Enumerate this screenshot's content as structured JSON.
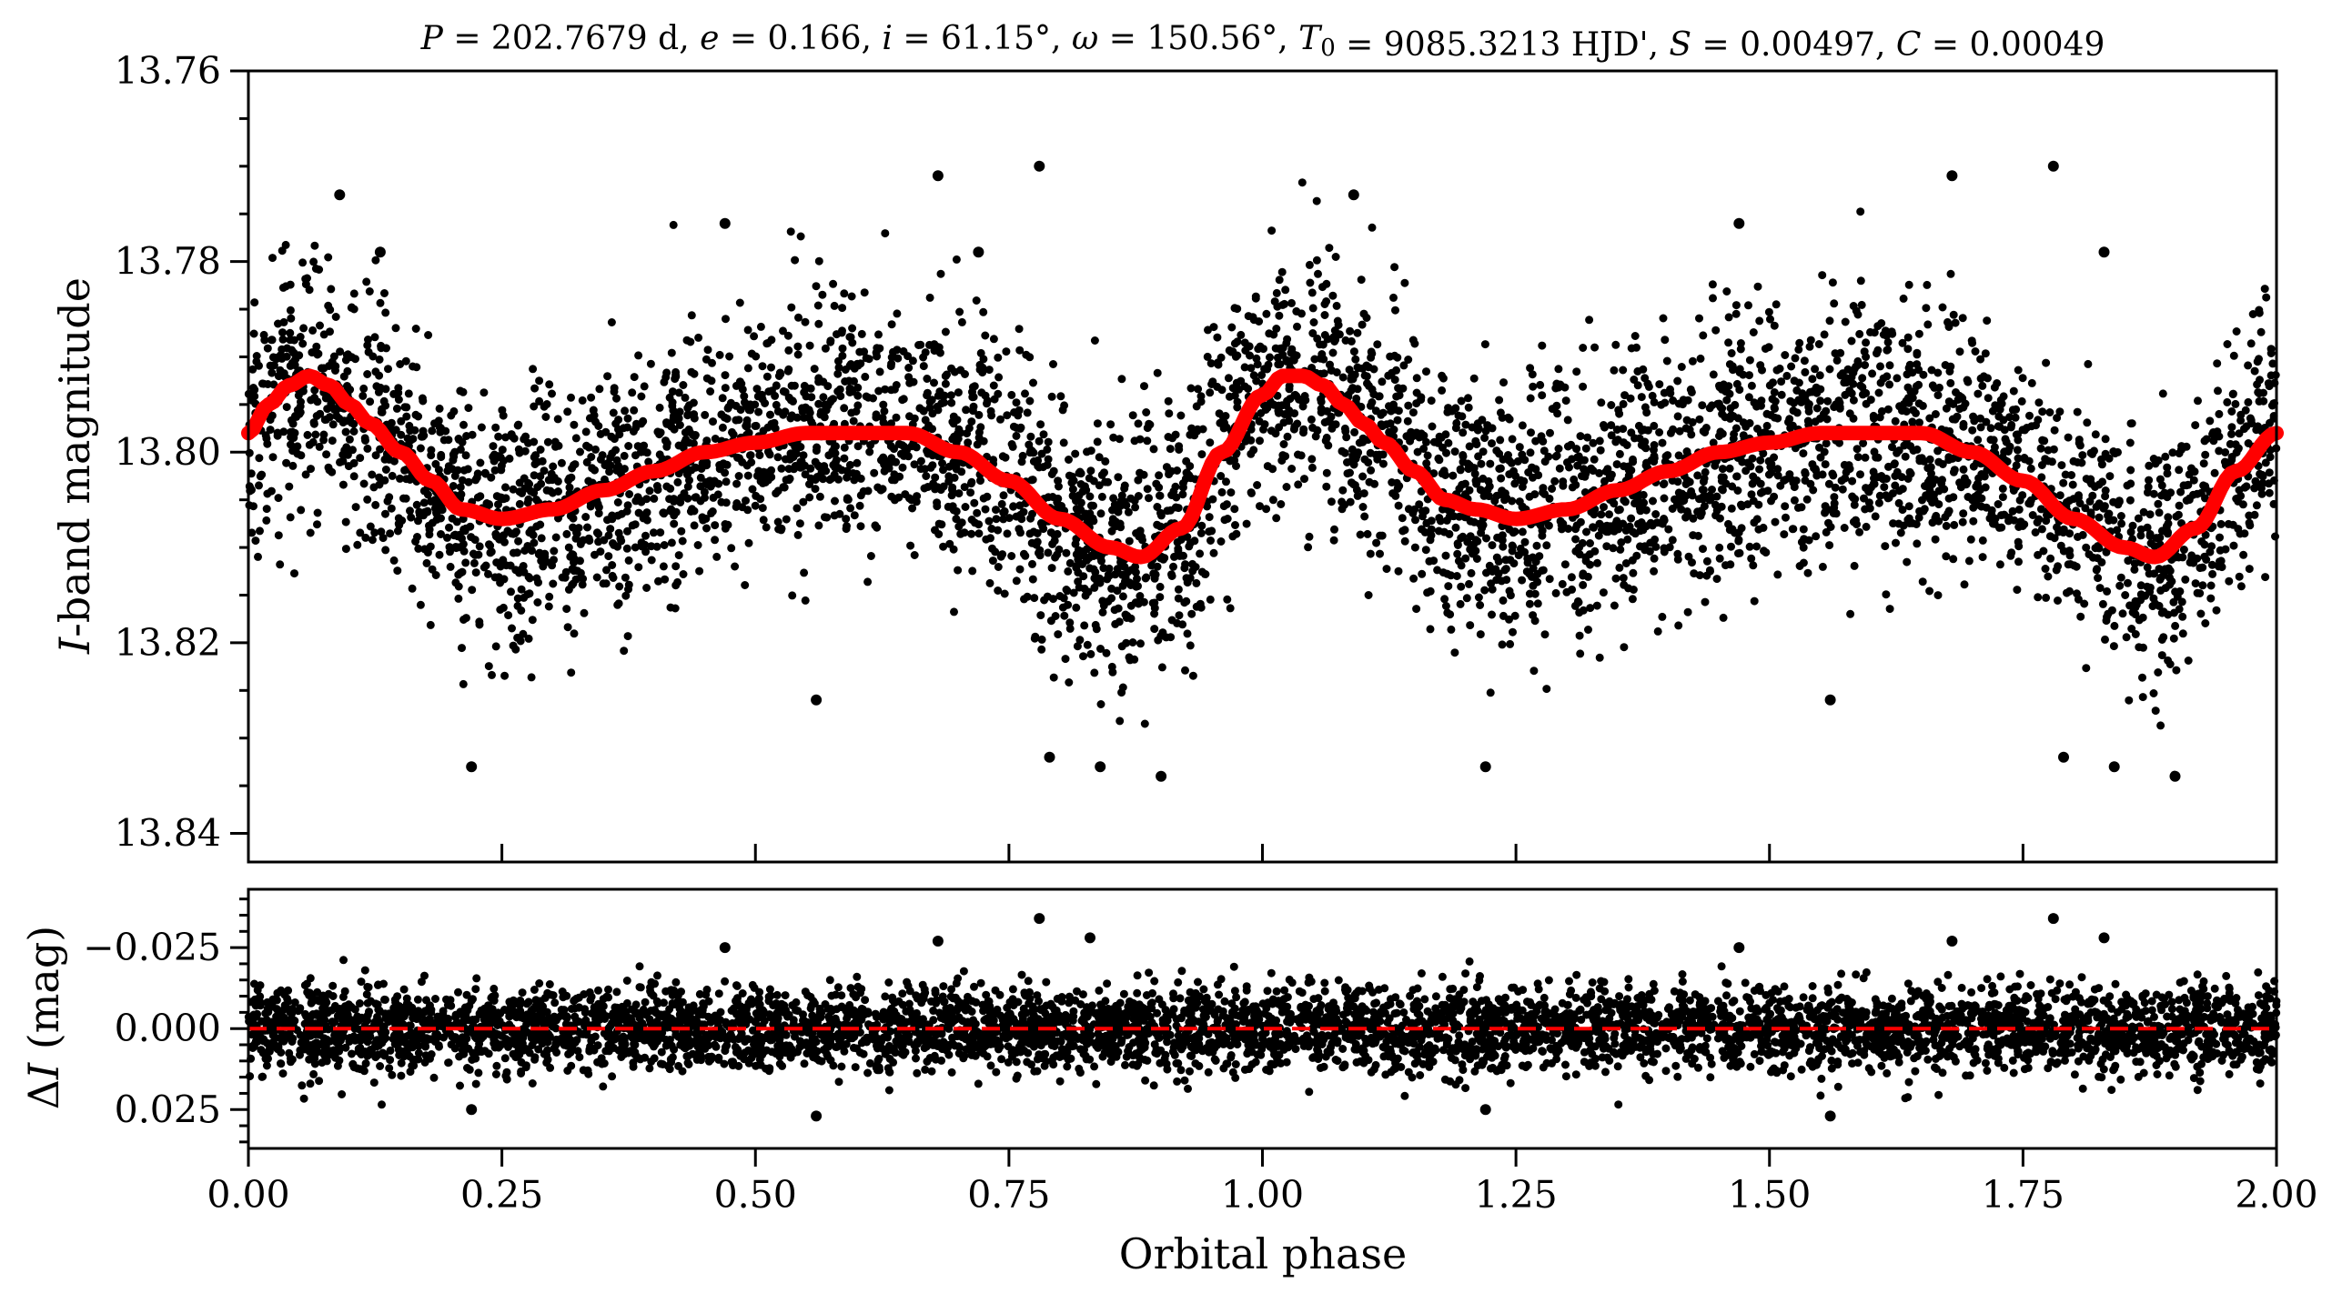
{
  "chart_data": [
    {
      "type": "scatter",
      "panel": "top",
      "title": "P = 202.7679 d, e = 0.166, i = 61.15°, ω = 150.56°, T0 = 9085.3213 HJD', S = 0.00497, C = 0.00049",
      "ylabel": "I-band magnitude",
      "ylabel_italic_part": "I",
      "ylabel_rest": "-band magnitude",
      "xlim": [
        0.0,
        2.0
      ],
      "ylim": [
        13.843,
        13.76
      ],
      "y_inverted": true,
      "yticks": [
        13.76,
        13.78,
        13.8,
        13.82,
        13.84
      ],
      "ytick_labels": [
        "13.76",
        "13.78",
        "13.80",
        "13.82",
        "13.84"
      ],
      "grid": false,
      "series": [
        {
          "kind": "points",
          "color": "#000000",
          "description_of_trend_in_data": [],
          "x": [
            0.0,
            0.02,
            0.04,
            0.06,
            0.08,
            0.1,
            0.12,
            0.15,
            0.18,
            0.21,
            0.25,
            0.3,
            0.35,
            0.4,
            0.45,
            0.5,
            0.55,
            0.6,
            0.65,
            0.7,
            0.75,
            0.8,
            0.85,
            0.88,
            0.92,
            0.96,
            1.0,
            1.02,
            1.04,
            1.06,
            1.08,
            1.1,
            1.12,
            1.15,
            1.18,
            1.21,
            1.25,
            1.3,
            1.35,
            1.4,
            1.45,
            1.5,
            1.55,
            1.6,
            1.65,
            1.7,
            1.75,
            1.8,
            1.85,
            1.88,
            1.92,
            1.96,
            2.0
          ],
          "y": [
            13.798,
            13.795,
            13.793,
            13.792,
            13.793,
            13.795,
            13.797,
            13.8,
            13.803,
            13.806,
            13.807,
            13.806,
            13.804,
            13.802,
            13.8,
            13.799,
            13.798,
            13.798,
            13.798,
            13.8,
            13.803,
            13.807,
            13.81,
            13.811,
            13.808,
            13.8,
            13.794,
            13.792,
            13.792,
            13.793,
            13.795,
            13.797,
            13.799,
            13.802,
            13.805,
            13.806,
            13.807,
            13.806,
            13.804,
            13.802,
            13.8,
            13.799,
            13.798,
            13.798,
            13.798,
            13.8,
            13.803,
            13.807,
            13.81,
            13.811,
            13.808,
            13.802,
            13.798
          ],
          "scatter_sd": 0.0065,
          "outliers": [
            {
              "x": 0.09,
              "y": 13.773
            },
            {
              "x": 0.22,
              "y": 13.833
            },
            {
              "x": 0.68,
              "y": 13.771
            },
            {
              "x": 0.78,
              "y": 13.77
            },
            {
              "x": 0.79,
              "y": 13.832
            },
            {
              "x": 0.84,
              "y": 13.833
            },
            {
              "x": 0.9,
              "y": 13.834
            },
            {
              "x": 1.09,
              "y": 13.773
            },
            {
              "x": 1.22,
              "y": 13.833
            },
            {
              "x": 1.47,
              "y": 13.776
            },
            {
              "x": 1.68,
              "y": 13.771
            },
            {
              "x": 1.78,
              "y": 13.77
            },
            {
              "x": 1.79,
              "y": 13.832
            },
            {
              "x": 1.84,
              "y": 13.833
            },
            {
              "x": 1.9,
              "y": 13.834
            },
            {
              "x": 0.13,
              "y": 13.779
            },
            {
              "x": 0.47,
              "y": 13.776
            },
            {
              "x": 0.56,
              "y": 13.826
            },
            {
              "x": 0.72,
              "y": 13.779
            },
            {
              "x": 1.56,
              "y": 13.826
            },
            {
              "x": 1.83,
              "y": 13.779
            }
          ]
        },
        {
          "kind": "model-line",
          "color": "#ff0000",
          "x": [
            0.0,
            0.02,
            0.04,
            0.06,
            0.08,
            0.1,
            0.12,
            0.15,
            0.18,
            0.21,
            0.25,
            0.3,
            0.35,
            0.4,
            0.45,
            0.5,
            0.55,
            0.6,
            0.65,
            0.7,
            0.75,
            0.8,
            0.85,
            0.88,
            0.92,
            0.96,
            1.0,
            1.02,
            1.04,
            1.06,
            1.08,
            1.1,
            1.12,
            1.15,
            1.18,
            1.21,
            1.25,
            1.3,
            1.35,
            1.4,
            1.45,
            1.5,
            1.55,
            1.6,
            1.65,
            1.7,
            1.75,
            1.8,
            1.85,
            1.88,
            1.92,
            1.96,
            2.0
          ],
          "y": [
            13.798,
            13.795,
            13.793,
            13.792,
            13.793,
            13.795,
            13.797,
            13.8,
            13.803,
            13.806,
            13.807,
            13.806,
            13.804,
            13.802,
            13.8,
            13.799,
            13.798,
            13.798,
            13.798,
            13.8,
            13.803,
            13.807,
            13.81,
            13.811,
            13.808,
            13.8,
            13.794,
            13.792,
            13.792,
            13.793,
            13.795,
            13.797,
            13.799,
            13.802,
            13.805,
            13.806,
            13.807,
            13.806,
            13.804,
            13.802,
            13.8,
            13.799,
            13.798,
            13.798,
            13.798,
            13.8,
            13.803,
            13.807,
            13.81,
            13.811,
            13.808,
            13.802,
            13.798
          ]
        }
      ]
    },
    {
      "type": "scatter",
      "panel": "bottom",
      "xlabel": "Orbital phase",
      "ylabel": "ΔI (mag)",
      "ylabel_delta": "Δ",
      "ylabel_italic_part": "I",
      "ylabel_rest": " (mag)",
      "xlim": [
        0.0,
        2.0
      ],
      "ylim": [
        0.037,
        -0.043
      ],
      "y_inverted": true,
      "xticks": [
        0.0,
        0.25,
        0.5,
        0.75,
        1.0,
        1.25,
        1.5,
        1.75,
        2.0
      ],
      "xtick_labels": [
        "0.00",
        "0.25",
        "0.50",
        "0.75",
        "1.00",
        "1.25",
        "1.50",
        "1.75",
        "2.00"
      ],
      "yticks": [
        -0.025,
        0.0,
        0.025
      ],
      "ytick_labels": [
        "−0.025",
        "0.000",
        "0.025"
      ],
      "grid": false,
      "series": [
        {
          "kind": "points",
          "color": "#000000",
          "x_range": [
            0.0,
            2.0
          ],
          "mean": 0.0,
          "scatter_sd": 0.0065,
          "outliers": [
            {
              "x": 0.78,
              "y": -0.034
            },
            {
              "x": 0.68,
              "y": -0.027
            },
            {
              "x": 0.83,
              "y": -0.028
            },
            {
              "x": 1.78,
              "y": -0.034
            },
            {
              "x": 1.68,
              "y": -0.027
            },
            {
              "x": 1.83,
              "y": -0.028
            },
            {
              "x": 0.47,
              "y": -0.025
            },
            {
              "x": 1.47,
              "y": -0.025
            },
            {
              "x": 0.56,
              "y": 0.027
            },
            {
              "x": 1.56,
              "y": 0.027
            },
            {
              "x": 0.22,
              "y": 0.025
            },
            {
              "x": 1.22,
              "y": 0.025
            }
          ]
        },
        {
          "kind": "reference-line",
          "style": "dashed",
          "color": "#ff0000",
          "y": 0.0
        }
      ]
    }
  ]
}
